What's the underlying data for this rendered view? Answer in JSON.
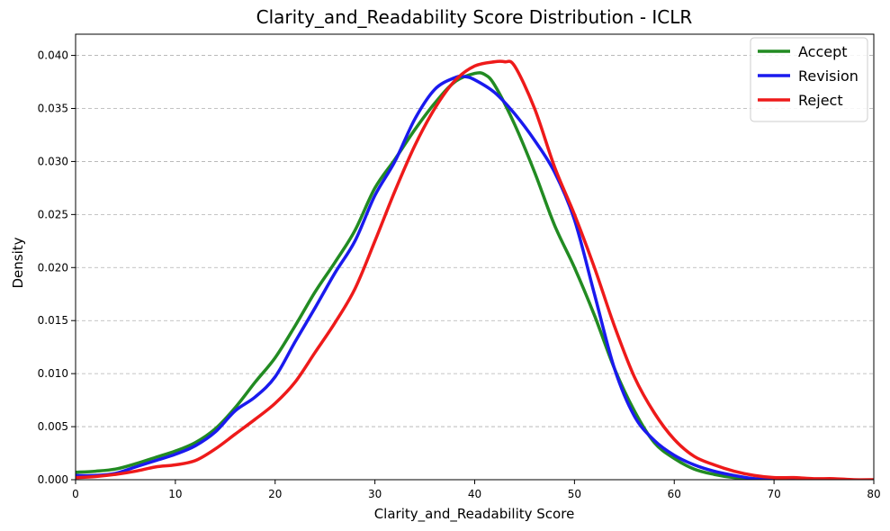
{
  "chart_data": {
    "type": "line",
    "title": "Clarity_and_Readability Score Distribution - ICLR",
    "xlabel": "Clarity_and_Readability Score",
    "ylabel": "Density",
    "xlim": [
      0,
      80
    ],
    "ylim": [
      0,
      0.042
    ],
    "xticks": [
      0,
      10,
      20,
      30,
      40,
      50,
      60,
      70,
      80
    ],
    "yticks": [
      0.0,
      0.005,
      0.01,
      0.015,
      0.02,
      0.025,
      0.03,
      0.035,
      0.04
    ],
    "xtick_labels": [
      "0",
      "10",
      "20",
      "30",
      "40",
      "50",
      "60",
      "70",
      "80"
    ],
    "ytick_labels": [
      "0.000",
      "0.005",
      "0.010",
      "0.015",
      "0.020",
      "0.025",
      "0.030",
      "0.035",
      "0.040"
    ],
    "grid": "y-dashed",
    "legend_position": "top-right",
    "series": [
      {
        "name": "Accept",
        "color": "#228B22",
        "x": [
          0,
          2,
          4,
          6,
          8,
          10,
          12,
          14,
          16,
          18,
          20,
          22,
          24,
          26,
          28,
          30,
          32,
          34,
          36,
          38,
          40,
          41,
          42,
          44,
          46,
          48,
          50,
          52,
          54,
          56,
          58,
          60,
          62,
          64,
          66,
          68,
          70,
          72,
          74
        ],
        "values": [
          0.0007,
          0.0008,
          0.001,
          0.0015,
          0.0021,
          0.0027,
          0.0035,
          0.0048,
          0.0068,
          0.0092,
          0.0115,
          0.0145,
          0.0177,
          0.0205,
          0.0235,
          0.0275,
          0.0302,
          0.033,
          0.0355,
          0.0375,
          0.0383,
          0.0382,
          0.0372,
          0.0335,
          0.029,
          0.024,
          0.02,
          0.0155,
          0.0105,
          0.0065,
          0.0035,
          0.002,
          0.001,
          0.0005,
          0.0002,
          0.0001,
          0.0,
          0.0,
          0.0
        ]
      },
      {
        "name": "Revision",
        "color": "#1a1aee",
        "x": [
          0,
          2,
          4,
          6,
          8,
          10,
          12,
          14,
          16,
          18,
          20,
          22,
          24,
          26,
          28,
          30,
          32,
          34,
          36,
          38,
          39,
          40,
          42,
          44,
          46,
          48,
          50,
          52,
          54,
          56,
          58,
          60,
          62,
          64,
          66,
          68,
          70,
          72
        ],
        "values": [
          0.0004,
          0.0004,
          0.0006,
          0.0012,
          0.0018,
          0.0024,
          0.0032,
          0.0045,
          0.0065,
          0.0078,
          0.0097,
          0.013,
          0.0162,
          0.0195,
          0.0225,
          0.0268,
          0.03,
          0.034,
          0.0368,
          0.0379,
          0.038,
          0.0377,
          0.0365,
          0.0345,
          0.032,
          0.029,
          0.0245,
          0.0175,
          0.0105,
          0.006,
          0.0037,
          0.0023,
          0.0014,
          0.0008,
          0.0004,
          0.0001,
          0.0,
          0.0
        ]
      },
      {
        "name": "Reject",
        "color": "#ee1a1a",
        "x": [
          0,
          2,
          4,
          6,
          8,
          10,
          12,
          14,
          16,
          18,
          20,
          22,
          24,
          26,
          28,
          30,
          32,
          34,
          36,
          38,
          40,
          42,
          43,
          44,
          46,
          48,
          50,
          52,
          54,
          56,
          58,
          60,
          62,
          64,
          66,
          68,
          70,
          72,
          74,
          76,
          78,
          80
        ],
        "values": [
          0.0002,
          0.0003,
          0.0005,
          0.0008,
          0.0012,
          0.0014,
          0.0018,
          0.0029,
          0.0043,
          0.0057,
          0.0072,
          0.0092,
          0.012,
          0.0148,
          0.018,
          0.0225,
          0.0272,
          0.0315,
          0.035,
          0.0376,
          0.039,
          0.0394,
          0.0394,
          0.039,
          0.035,
          0.0295,
          0.025,
          0.02,
          0.0145,
          0.0097,
          0.0063,
          0.0038,
          0.0022,
          0.0014,
          0.0008,
          0.0004,
          0.0002,
          0.0002,
          0.0001,
          0.0001,
          0.0,
          0.0
        ]
      }
    ]
  }
}
